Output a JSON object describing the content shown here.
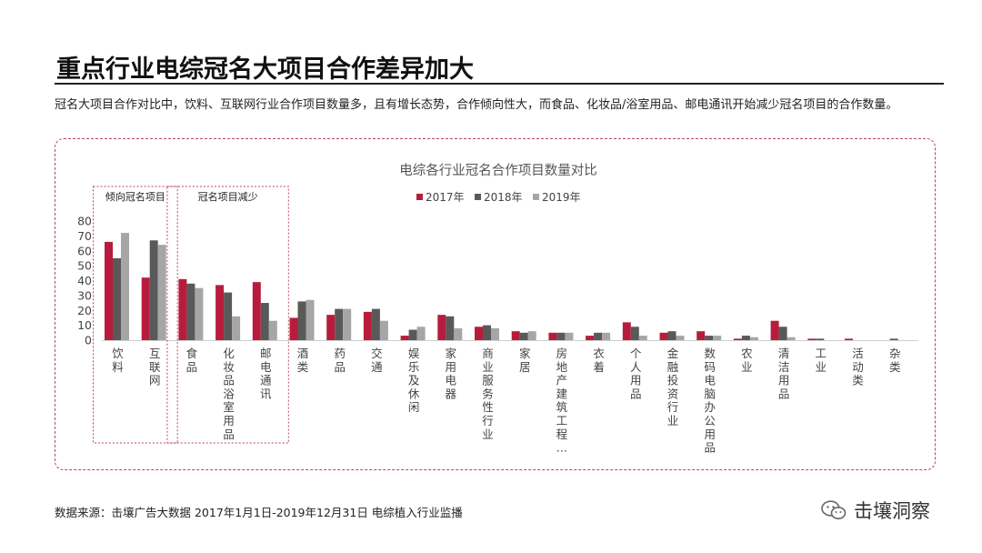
{
  "page": {
    "title": "重点行业电综冠名大项目合作差异加大",
    "subtitle": "冠名大项目合作对比中，饮料、互联网行业合作项目数量多，且有增长态势，合作倾向性大，而食品、化妆品/浴室用品、邮电通讯开始减少冠名项目的合作数量。",
    "source": "数据来源：击壤广告大数据 2017年1月1日-2019年12月31日 电综植入行业监播",
    "brand": "击壤洞察",
    "brand_icon": "wechat-icon"
  },
  "chart_data": {
    "type": "bar",
    "title": "电综各行业冠名合作项目数量对比",
    "categories": [
      "饮料",
      "互联网",
      "食品",
      "化妆品浴室用品",
      "邮电通讯",
      "酒类",
      "药品",
      "交通",
      "娱乐及休闲",
      "家用电器",
      "商业服务性行业",
      "家居",
      "房地产建筑工程…",
      "衣着",
      "个人用品",
      "金融投资行业",
      "数码电脑办公用品",
      "农业",
      "清洁用品",
      "工业",
      "活动类",
      "杂类"
    ],
    "series": [
      {
        "name": "2017年",
        "color": "#b81c3c",
        "values": [
          66,
          42,
          41,
          37,
          39,
          15,
          17,
          19,
          3,
          17,
          9,
          6,
          5,
          3,
          12,
          5,
          6,
          1,
          13,
          1,
          1,
          0
        ]
      },
      {
        "name": "2018年",
        "color": "#595959",
        "values": [
          55,
          67,
          38,
          32,
          25,
          26,
          21,
          21,
          7,
          16,
          10,
          5,
          5,
          5,
          9,
          6,
          3,
          3,
          9,
          1,
          0,
          1
        ]
      },
      {
        "name": "2019年",
        "color": "#a6a6a6",
        "values": [
          72,
          64,
          35,
          16,
          13,
          27,
          21,
          13,
          9,
          8,
          8,
          6,
          5,
          5,
          3,
          3,
          3,
          2,
          2,
          0,
          0,
          0
        ]
      }
    ],
    "y_ticks": [
      0,
      10,
      20,
      30,
      40,
      50,
      60,
      70,
      80
    ],
    "ylim": [
      0,
      80
    ],
    "legend": "top-center",
    "annotations": [
      {
        "label": "倾向冠名项目",
        "first": 0,
        "last": 1
      },
      {
        "label": "冠名项目减少",
        "first": 2,
        "last": 4
      }
    ]
  }
}
